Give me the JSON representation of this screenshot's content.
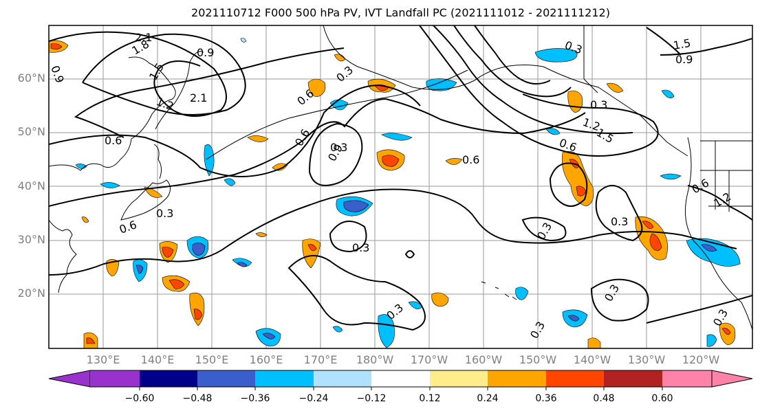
{
  "title": "2021110712 F000 500 hPa PV, IVT Landfall PC (2021111012 - 2021111212)",
  "lat_labels": [
    "60°N",
    "50°N",
    "40°N",
    "30°N",
    "20°N"
  ],
  "lon_labels": [
    "130°E",
    "140°E",
    "150°E",
    "160°E",
    "170°E",
    "180°W",
    "170°W",
    "160°W",
    "150°W",
    "140°W",
    "130°W",
    "120°W"
  ],
  "contour_labels": [
    "2.1",
    "1.8",
    "0.9",
    "1.5",
    "1.2",
    "2.1",
    "0.6",
    "0.3",
    "0.6",
    "0.9",
    "0.3",
    "0.6",
    "0.3",
    "0.6",
    "0.3",
    "0.3",
    "0.3",
    "0.3",
    "0.3",
    "0.3",
    "0.3",
    "0.3",
    "0.6",
    "0.9",
    "1.5",
    "1.2",
    "0.6",
    "0.3",
    "0.6",
    "1.2",
    "0.9",
    "1.5"
  ],
  "colorbar": {
    "ticks": [
      "−0.60",
      "−0.48",
      "−0.36",
      "−0.24",
      "−0.12",
      "0.12",
      "0.24",
      "0.36",
      "0.48",
      "0.60"
    ],
    "colors": [
      "#9932CC",
      "#00008B",
      "#3A5FCD",
      "#00BFFF",
      "#B0E2FF",
      "#FFFFFF",
      "#FFEC8B",
      "#FFA500",
      "#FF4500",
      "#B22222",
      "#FF82AB"
    ]
  }
}
